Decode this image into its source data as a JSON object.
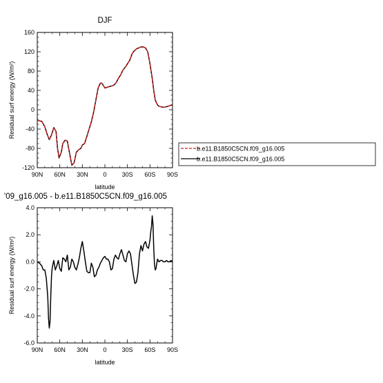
{
  "chart_data": [
    {
      "type": "line",
      "title": "DJF",
      "xlabel": "latitude",
      "ylabel": "Residual surf energy (W/m²)",
      "xlim": [
        -90,
        90
      ],
      "ylim": [
        -120,
        160
      ],
      "x_ticks": [
        "90N",
        "60N",
        "30N",
        "0",
        "30S",
        "60S",
        "90S"
      ],
      "y_ticks": [
        "-120",
        "-80",
        "-40",
        "0",
        "40",
        "80",
        "120",
        "160"
      ],
      "series": [
        {
          "name": "b.e11.B1850C5CN.f09_g16.005",
          "color": "#cc1f1f",
          "dash": "dashed",
          "x": [
            -90,
            -84,
            -80,
            -77,
            -74,
            -71,
            -68,
            -65,
            -63,
            -61,
            -58,
            -56,
            -53,
            -50,
            -47,
            -44,
            -41,
            -38,
            -35,
            -32,
            -30,
            -27,
            -24,
            -21,
            -18,
            -15,
            -12,
            -9,
            -6,
            -4,
            -2,
            0,
            2,
            4,
            6,
            9,
            12,
            15,
            18,
            21,
            24,
            27,
            30,
            33,
            36,
            38,
            40,
            42,
            45,
            48,
            51,
            54,
            57,
            60,
            63,
            65,
            67,
            70,
            72,
            75,
            78,
            81,
            84,
            87,
            90
          ],
          "y": [
            -22,
            -24,
            -35,
            -50,
            -62,
            -52,
            -37,
            -45,
            -80,
            -100,
            -88,
            -70,
            -63,
            -65,
            -90,
            -115,
            -110,
            -88,
            -83,
            -80,
            -73,
            -70,
            -55,
            -40,
            -25,
            -5,
            20,
            45,
            55,
            55,
            50,
            45,
            46,
            47,
            48,
            49,
            51,
            56,
            65,
            72,
            82,
            88,
            95,
            102,
            115,
            120,
            123,
            126,
            128,
            130,
            130,
            128,
            120,
            95,
            65,
            40,
            20,
            10,
            7,
            6,
            5,
            6,
            7,
            9,
            10
          ]
        },
        {
          "name": "b.e11.B1850C5CN.f09_g16.005",
          "color": "#000000",
          "dash": "solid",
          "x": [
            -90,
            -84,
            -80,
            -77,
            -74,
            -71,
            -68,
            -65,
            -63,
            -61,
            -58,
            -56,
            -53,
            -50,
            -47,
            -44,
            -41,
            -38,
            -35,
            -32,
            -30,
            -27,
            -24,
            -21,
            -18,
            -15,
            -12,
            -9,
            -6,
            -4,
            -2,
            0,
            2,
            4,
            6,
            9,
            12,
            15,
            18,
            21,
            24,
            27,
            30,
            33,
            36,
            38,
            40,
            42,
            45,
            48,
            51,
            54,
            57,
            60,
            63,
            65,
            67,
            70,
            72,
            75,
            78,
            81,
            84,
            87,
            90
          ],
          "y": [
            -22,
            -24,
            -35,
            -50,
            -62,
            -52,
            -37,
            -45,
            -80,
            -100,
            -88,
            -70,
            -63,
            -65,
            -90,
            -115,
            -110,
            -88,
            -83,
            -80,
            -73,
            -70,
            -55,
            -40,
            -25,
            -5,
            20,
            45,
            55,
            55,
            50,
            45,
            46,
            47,
            48,
            49,
            51,
            56,
            65,
            72,
            82,
            88,
            95,
            102,
            115,
            120,
            123,
            126,
            128,
            130,
            130,
            128,
            120,
            95,
            65,
            40,
            20,
            10,
            7,
            6,
            5,
            6,
            7,
            9,
            10
          ]
        }
      ]
    },
    {
      "type": "line",
      "title": "'09_g16.005 - b.e11.B1850C5CN.f09_g16.005",
      "xlabel": "latitude",
      "ylabel": "Residual surf energy (W/m²)",
      "xlim": [
        -90,
        90
      ],
      "ylim": [
        -6,
        4
      ],
      "x_ticks": [
        "90N",
        "60N",
        "30N",
        "0",
        "30S",
        "60S",
        "90S"
      ],
      "y_ticks": [
        "-6.0",
        "-4.0",
        "-2.0",
        "0.0",
        "2.0",
        "4.0"
      ],
      "series": [
        {
          "color": "#000000",
          "dash": "solid",
          "x": [
            -90,
            -87,
            -84,
            -82,
            -80,
            -78,
            -76,
            -75,
            -74,
            -73,
            -72,
            -71,
            -70,
            -68,
            -66,
            -64,
            -62,
            -60,
            -58,
            -56,
            -54,
            -52,
            -50,
            -48,
            -46,
            -44,
            -42,
            -40,
            -38,
            -36,
            -34,
            -32,
            -30,
            -28,
            -26,
            -24,
            -22,
            -20,
            -18,
            -16,
            -14,
            -12,
            -10,
            -8,
            -6,
            -4,
            -2,
            0,
            2,
            4,
            6,
            8,
            10,
            12,
            14,
            16,
            18,
            20,
            22,
            24,
            26,
            28,
            30,
            32,
            34,
            36,
            38,
            40,
            42,
            44,
            46,
            48,
            50,
            52,
            54,
            56,
            58,
            60,
            61,
            62,
            63,
            64,
            65,
            66,
            67,
            68,
            70,
            72,
            74,
            76,
            78,
            80,
            82,
            84,
            86,
            88,
            90
          ],
          "y": [
            0,
            -0.1,
            -0.3,
            -0.6,
            -0.6,
            -1.2,
            -2.6,
            -4.2,
            -4.9,
            -4.4,
            -2.5,
            -1.0,
            -0.4,
            0.1,
            -0.6,
            -0.3,
            0.1,
            -0.5,
            -0.7,
            0.3,
            0.2,
            0.0,
            0.5,
            -0.6,
            -0.4,
            0.2,
            0.0,
            -0.4,
            -0.6,
            -0.2,
            0.3,
            1.0,
            1.5,
            0.8,
            0.0,
            -0.7,
            -0.8,
            -0.8,
            -0.1,
            -0.4,
            -1.1,
            -1.0,
            -0.6,
            -0.4,
            -0.1,
            0.1,
            0.3,
            0.4,
            0.2,
            0.2,
            0.0,
            -0.6,
            -0.5,
            0.2,
            0.5,
            0.3,
            0.2,
            0.6,
            0.9,
            0.5,
            0.1,
            0.0,
            0.6,
            0.8,
            0.6,
            -0.2,
            -1.0,
            -1.6,
            -1.5,
            -0.8,
            0.6,
            1.2,
            0.8,
            1.3,
            1.5,
            1.1,
            1.0,
            1.6,
            2.2,
            2.6,
            3.4,
            2.8,
            1.0,
            -0.2,
            -0.6,
            -0.5,
            0.2,
            0.0,
            0.1,
            0.1,
            0.0,
            0.0,
            0.1,
            0.0,
            0.0,
            0.1,
            0.0
          ]
        }
      ]
    }
  ]
}
